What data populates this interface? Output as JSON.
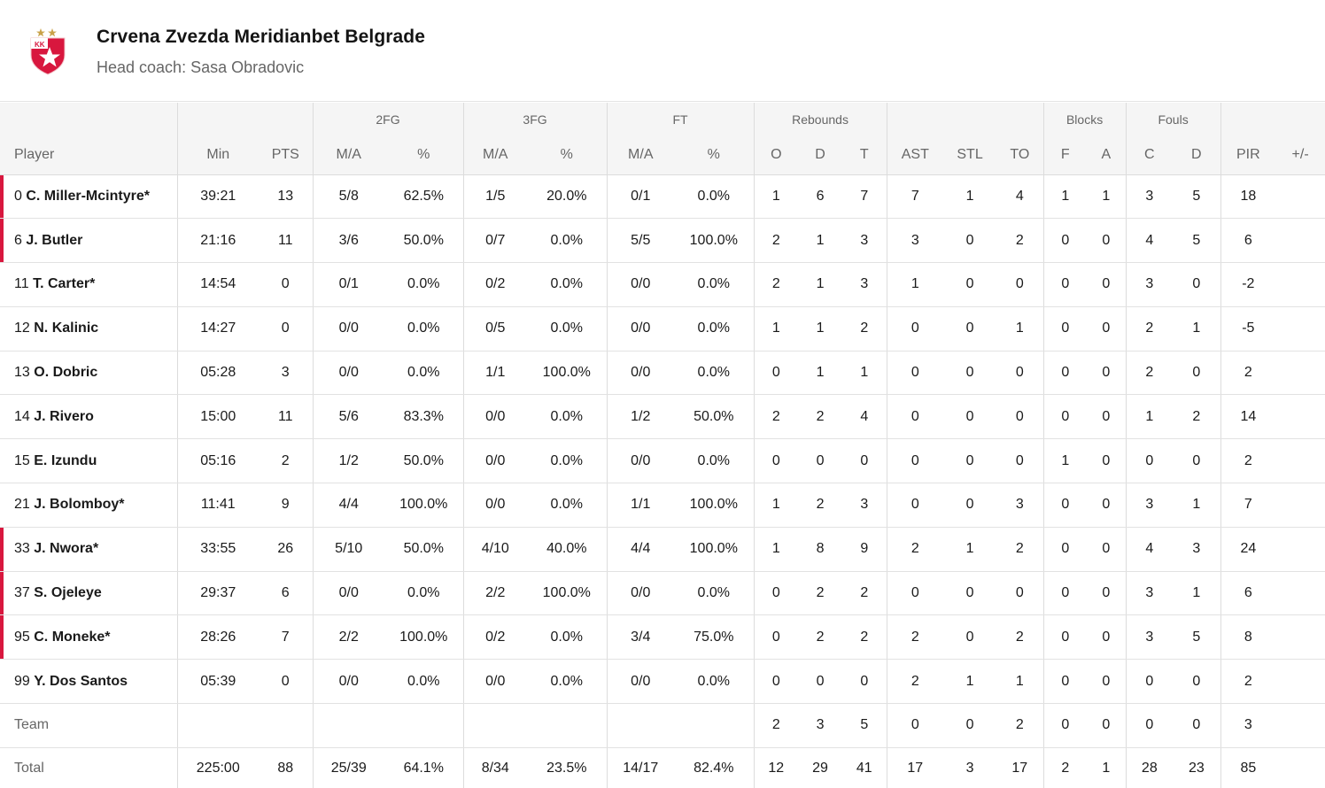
{
  "header": {
    "team_name": "Crvena Zvezda Meridianbet Belgrade",
    "coach": "Head coach: Sasa Obradovic",
    "logo_text": "KK",
    "logo_icon": "red-star-shield-icon"
  },
  "groups": {
    "fg2": "2FG",
    "fg3": "3FG",
    "ft": "FT",
    "rebounds": "Rebounds",
    "blocks": "Blocks",
    "fouls": "Fouls"
  },
  "columns": {
    "player": "Player",
    "min": "Min",
    "pts": "PTS",
    "fg2_ma": "M/A",
    "fg2_pct": "%",
    "fg3_ma": "M/A",
    "fg3_pct": "%",
    "ft_ma": "M/A",
    "ft_pct": "%",
    "reb_o": "O",
    "reb_d": "D",
    "reb_t": "T",
    "ast": "AST",
    "stl": "STL",
    "to": "TO",
    "blk_f": "F",
    "blk_a": "A",
    "foul_c": "C",
    "foul_d": "D",
    "pir": "PIR",
    "pm": "+/-"
  },
  "players": [
    {
      "num": "0",
      "name": "C. Miller-Mcintyre*",
      "on_court": true,
      "min": "39:21",
      "pts": "13",
      "fg2_ma": "5/8",
      "fg2_pct": "62.5%",
      "fg3_ma": "1/5",
      "fg3_pct": "20.0%",
      "ft_ma": "0/1",
      "ft_pct": "0.0%",
      "reb_o": "1",
      "reb_d": "6",
      "reb_t": "7",
      "ast": "7",
      "stl": "1",
      "to": "4",
      "blk_f": "1",
      "blk_a": "1",
      "foul_c": "3",
      "foul_d": "5",
      "pir": "18",
      "pm": ""
    },
    {
      "num": "6",
      "name": "J. Butler",
      "on_court": true,
      "min": "21:16",
      "pts": "11",
      "fg2_ma": "3/6",
      "fg2_pct": "50.0%",
      "fg3_ma": "0/7",
      "fg3_pct": "0.0%",
      "ft_ma": "5/5",
      "ft_pct": "100.0%",
      "reb_o": "2",
      "reb_d": "1",
      "reb_t": "3",
      "ast": "3",
      "stl": "0",
      "to": "2",
      "blk_f": "0",
      "blk_a": "0",
      "foul_c": "4",
      "foul_d": "5",
      "pir": "6",
      "pm": ""
    },
    {
      "num": "11",
      "name": "T. Carter*",
      "on_court": false,
      "min": "14:54",
      "pts": "0",
      "fg2_ma": "0/1",
      "fg2_pct": "0.0%",
      "fg3_ma": "0/2",
      "fg3_pct": "0.0%",
      "ft_ma": "0/0",
      "ft_pct": "0.0%",
      "reb_o": "2",
      "reb_d": "1",
      "reb_t": "3",
      "ast": "1",
      "stl": "0",
      "to": "0",
      "blk_f": "0",
      "blk_a": "0",
      "foul_c": "3",
      "foul_d": "0",
      "pir": "-2",
      "pm": ""
    },
    {
      "num": "12",
      "name": "N. Kalinic",
      "on_court": false,
      "min": "14:27",
      "pts": "0",
      "fg2_ma": "0/0",
      "fg2_pct": "0.0%",
      "fg3_ma": "0/5",
      "fg3_pct": "0.0%",
      "ft_ma": "0/0",
      "ft_pct": "0.0%",
      "reb_o": "1",
      "reb_d": "1",
      "reb_t": "2",
      "ast": "0",
      "stl": "0",
      "to": "1",
      "blk_f": "0",
      "blk_a": "0",
      "foul_c": "2",
      "foul_d": "1",
      "pir": "-5",
      "pm": ""
    },
    {
      "num": "13",
      "name": "O. Dobric",
      "on_court": false,
      "min": "05:28",
      "pts": "3",
      "fg2_ma": "0/0",
      "fg2_pct": "0.0%",
      "fg3_ma": "1/1",
      "fg3_pct": "100.0%",
      "ft_ma": "0/0",
      "ft_pct": "0.0%",
      "reb_o": "0",
      "reb_d": "1",
      "reb_t": "1",
      "ast": "0",
      "stl": "0",
      "to": "0",
      "blk_f": "0",
      "blk_a": "0",
      "foul_c": "2",
      "foul_d": "0",
      "pir": "2",
      "pm": ""
    },
    {
      "num": "14",
      "name": "J. Rivero",
      "on_court": false,
      "min": "15:00",
      "pts": "11",
      "fg2_ma": "5/6",
      "fg2_pct": "83.3%",
      "fg3_ma": "0/0",
      "fg3_pct": "0.0%",
      "ft_ma": "1/2",
      "ft_pct": "50.0%",
      "reb_o": "2",
      "reb_d": "2",
      "reb_t": "4",
      "ast": "0",
      "stl": "0",
      "to": "0",
      "blk_f": "0",
      "blk_a": "0",
      "foul_c": "1",
      "foul_d": "2",
      "pir": "14",
      "pm": ""
    },
    {
      "num": "15",
      "name": "E. Izundu",
      "on_court": false,
      "min": "05:16",
      "pts": "2",
      "fg2_ma": "1/2",
      "fg2_pct": "50.0%",
      "fg3_ma": "0/0",
      "fg3_pct": "0.0%",
      "ft_ma": "0/0",
      "ft_pct": "0.0%",
      "reb_o": "0",
      "reb_d": "0",
      "reb_t": "0",
      "ast": "0",
      "stl": "0",
      "to": "0",
      "blk_f": "1",
      "blk_a": "0",
      "foul_c": "0",
      "foul_d": "0",
      "pir": "2",
      "pm": ""
    },
    {
      "num": "21",
      "name": "J. Bolomboy*",
      "on_court": false,
      "min": "11:41",
      "pts": "9",
      "fg2_ma": "4/4",
      "fg2_pct": "100.0%",
      "fg3_ma": "0/0",
      "fg3_pct": "0.0%",
      "ft_ma": "1/1",
      "ft_pct": "100.0%",
      "reb_o": "1",
      "reb_d": "2",
      "reb_t": "3",
      "ast": "0",
      "stl": "0",
      "to": "3",
      "blk_f": "0",
      "blk_a": "0",
      "foul_c": "3",
      "foul_d": "1",
      "pir": "7",
      "pm": ""
    },
    {
      "num": "33",
      "name": "J. Nwora*",
      "on_court": true,
      "min": "33:55",
      "pts": "26",
      "fg2_ma": "5/10",
      "fg2_pct": "50.0%",
      "fg3_ma": "4/10",
      "fg3_pct": "40.0%",
      "ft_ma": "4/4",
      "ft_pct": "100.0%",
      "reb_o": "1",
      "reb_d": "8",
      "reb_t": "9",
      "ast": "2",
      "stl": "1",
      "to": "2",
      "blk_f": "0",
      "blk_a": "0",
      "foul_c": "4",
      "foul_d": "3",
      "pir": "24",
      "pm": ""
    },
    {
      "num": "37",
      "name": "S. Ojeleye",
      "on_court": true,
      "min": "29:37",
      "pts": "6",
      "fg2_ma": "0/0",
      "fg2_pct": "0.0%",
      "fg3_ma": "2/2",
      "fg3_pct": "100.0%",
      "ft_ma": "0/0",
      "ft_pct": "0.0%",
      "reb_o": "0",
      "reb_d": "2",
      "reb_t": "2",
      "ast": "0",
      "stl": "0",
      "to": "0",
      "blk_f": "0",
      "blk_a": "0",
      "foul_c": "3",
      "foul_d": "1",
      "pir": "6",
      "pm": ""
    },
    {
      "num": "95",
      "name": "C. Moneke*",
      "on_court": true,
      "min": "28:26",
      "pts": "7",
      "fg2_ma": "2/2",
      "fg2_pct": "100.0%",
      "fg3_ma": "0/2",
      "fg3_pct": "0.0%",
      "ft_ma": "3/4",
      "ft_pct": "75.0%",
      "reb_o": "0",
      "reb_d": "2",
      "reb_t": "2",
      "ast": "2",
      "stl": "0",
      "to": "2",
      "blk_f": "0",
      "blk_a": "0",
      "foul_c": "3",
      "foul_d": "5",
      "pir": "8",
      "pm": ""
    },
    {
      "num": "99",
      "name": "Y. Dos Santos",
      "on_court": false,
      "min": "05:39",
      "pts": "0",
      "fg2_ma": "0/0",
      "fg2_pct": "0.0%",
      "fg3_ma": "0/0",
      "fg3_pct": "0.0%",
      "ft_ma": "0/0",
      "ft_pct": "0.0%",
      "reb_o": "0",
      "reb_d": "0",
      "reb_t": "0",
      "ast": "2",
      "stl": "1",
      "to": "1",
      "blk_f": "0",
      "blk_a": "0",
      "foul_c": "0",
      "foul_d": "0",
      "pir": "2",
      "pm": ""
    }
  ],
  "team_row": {
    "label": "Team",
    "min": "",
    "pts": "",
    "fg2_ma": "",
    "fg2_pct": "",
    "fg3_ma": "",
    "fg3_pct": "",
    "ft_ma": "",
    "ft_pct": "",
    "reb_o": "2",
    "reb_d": "3",
    "reb_t": "5",
    "ast": "0",
    "stl": "0",
    "to": "2",
    "blk_f": "0",
    "blk_a": "0",
    "foul_c": "0",
    "foul_d": "0",
    "pir": "3",
    "pm": ""
  },
  "total_row": {
    "label": "Total",
    "min": "225:00",
    "pts": "88",
    "fg2_ma": "25/39",
    "fg2_pct": "64.1%",
    "fg3_ma": "8/34",
    "fg3_pct": "23.5%",
    "ft_ma": "14/17",
    "ft_pct": "82.4%",
    "reb_o": "12",
    "reb_d": "29",
    "reb_t": "41",
    "ast": "17",
    "stl": "3",
    "to": "17",
    "blk_f": "2",
    "blk_a": "1",
    "foul_c": "28",
    "foul_d": "23",
    "pir": "85",
    "pm": ""
  },
  "colors": {
    "on_court_marker": "#d8173e",
    "header_bg": "#f5f5f5"
  }
}
